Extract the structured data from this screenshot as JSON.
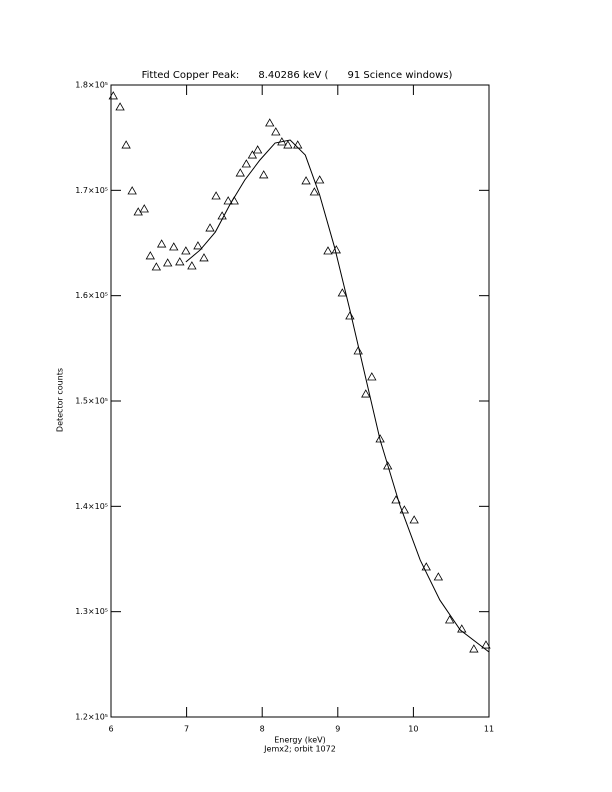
{
  "chart_data": {
    "type": "scatter",
    "title": "Fitted Copper Peak:      8.40286 keV (      91 Science windows)",
    "x_label": "Energy (keV)",
    "subtitle": "Jemx2; orbit 1072",
    "y_label": "Detector counts",
    "xlim": [
      6,
      11
    ],
    "xticks": [
      6,
      7,
      8,
      9,
      10,
      11
    ],
    "ylim": [
      120000,
      180000
    ],
    "yticks": [
      {
        "value": 120000,
        "label": "1.2×10⁵"
      },
      {
        "value": 130000,
        "label": "1.3×10⁵"
      },
      {
        "value": 140000,
        "label": "1.4×10⁵"
      },
      {
        "value": 150000,
        "label": "1.5×10⁵"
      },
      {
        "value": 160000,
        "label": "1.6×10⁵"
      },
      {
        "value": 170000,
        "label": "1.7×10⁵"
      },
      {
        "value": 180000,
        "label": "1.8×10⁵"
      }
    ],
    "series": [
      {
        "marker": "triangle",
        "color": "#000000",
        "x": [
          6.03,
          6.12,
          6.2,
          6.28,
          6.36,
          6.44,
          6.52,
          6.6,
          6.67,
          6.75,
          6.83,
          6.91,
          6.99,
          7.07,
          7.15,
          7.23,
          7.31,
          7.39,
          7.47,
          7.55,
          7.63,
          7.71,
          7.79,
          7.87,
          7.94,
          8.02,
          8.1,
          8.18,
          8.26,
          8.34,
          8.47,
          8.58,
          8.69,
          8.76,
          8.87,
          8.98,
          9.06,
          9.16,
          9.27,
          9.37,
          9.45,
          9.56,
          9.66,
          9.77,
          9.88,
          10.01,
          10.17,
          10.33,
          10.48,
          10.64,
          10.8,
          10.96
        ],
        "values": [
          178960,
          177910,
          174300,
          169940,
          167940,
          168230,
          163770,
          162720,
          164900,
          163100,
          164620,
          163200,
          164240,
          162820,
          164720,
          163580,
          166420,
          169460,
          167560,
          168990,
          168990,
          171640,
          172500,
          173350,
          173830,
          171460,
          176390,
          175540,
          174590,
          174300,
          174300,
          170890,
          169840,
          170980,
          164240,
          164340,
          160250,
          158070,
          154750,
          150660,
          152280,
          146390,
          143830,
          140600,
          139650,
          138700,
          134240,
          133290,
          129210,
          128350,
          126450,
          126830
        ]
      },
      {
        "marker": "line",
        "color": "#000000",
        "x": [
          6.99,
          7.18,
          7.38,
          7.57,
          7.77,
          7.97,
          8.17,
          8.37,
          8.57,
          8.76,
          8.96,
          9.16,
          9.36,
          9.56,
          9.82,
          10.09,
          10.35,
          10.62,
          11.0
        ],
        "values": [
          163200,
          164340,
          166040,
          168610,
          170980,
          172880,
          174490,
          174780,
          173350,
          169560,
          164520,
          158640,
          152470,
          146300,
          140130,
          134900,
          131100,
          128260,
          126170
        ]
      }
    ]
  }
}
